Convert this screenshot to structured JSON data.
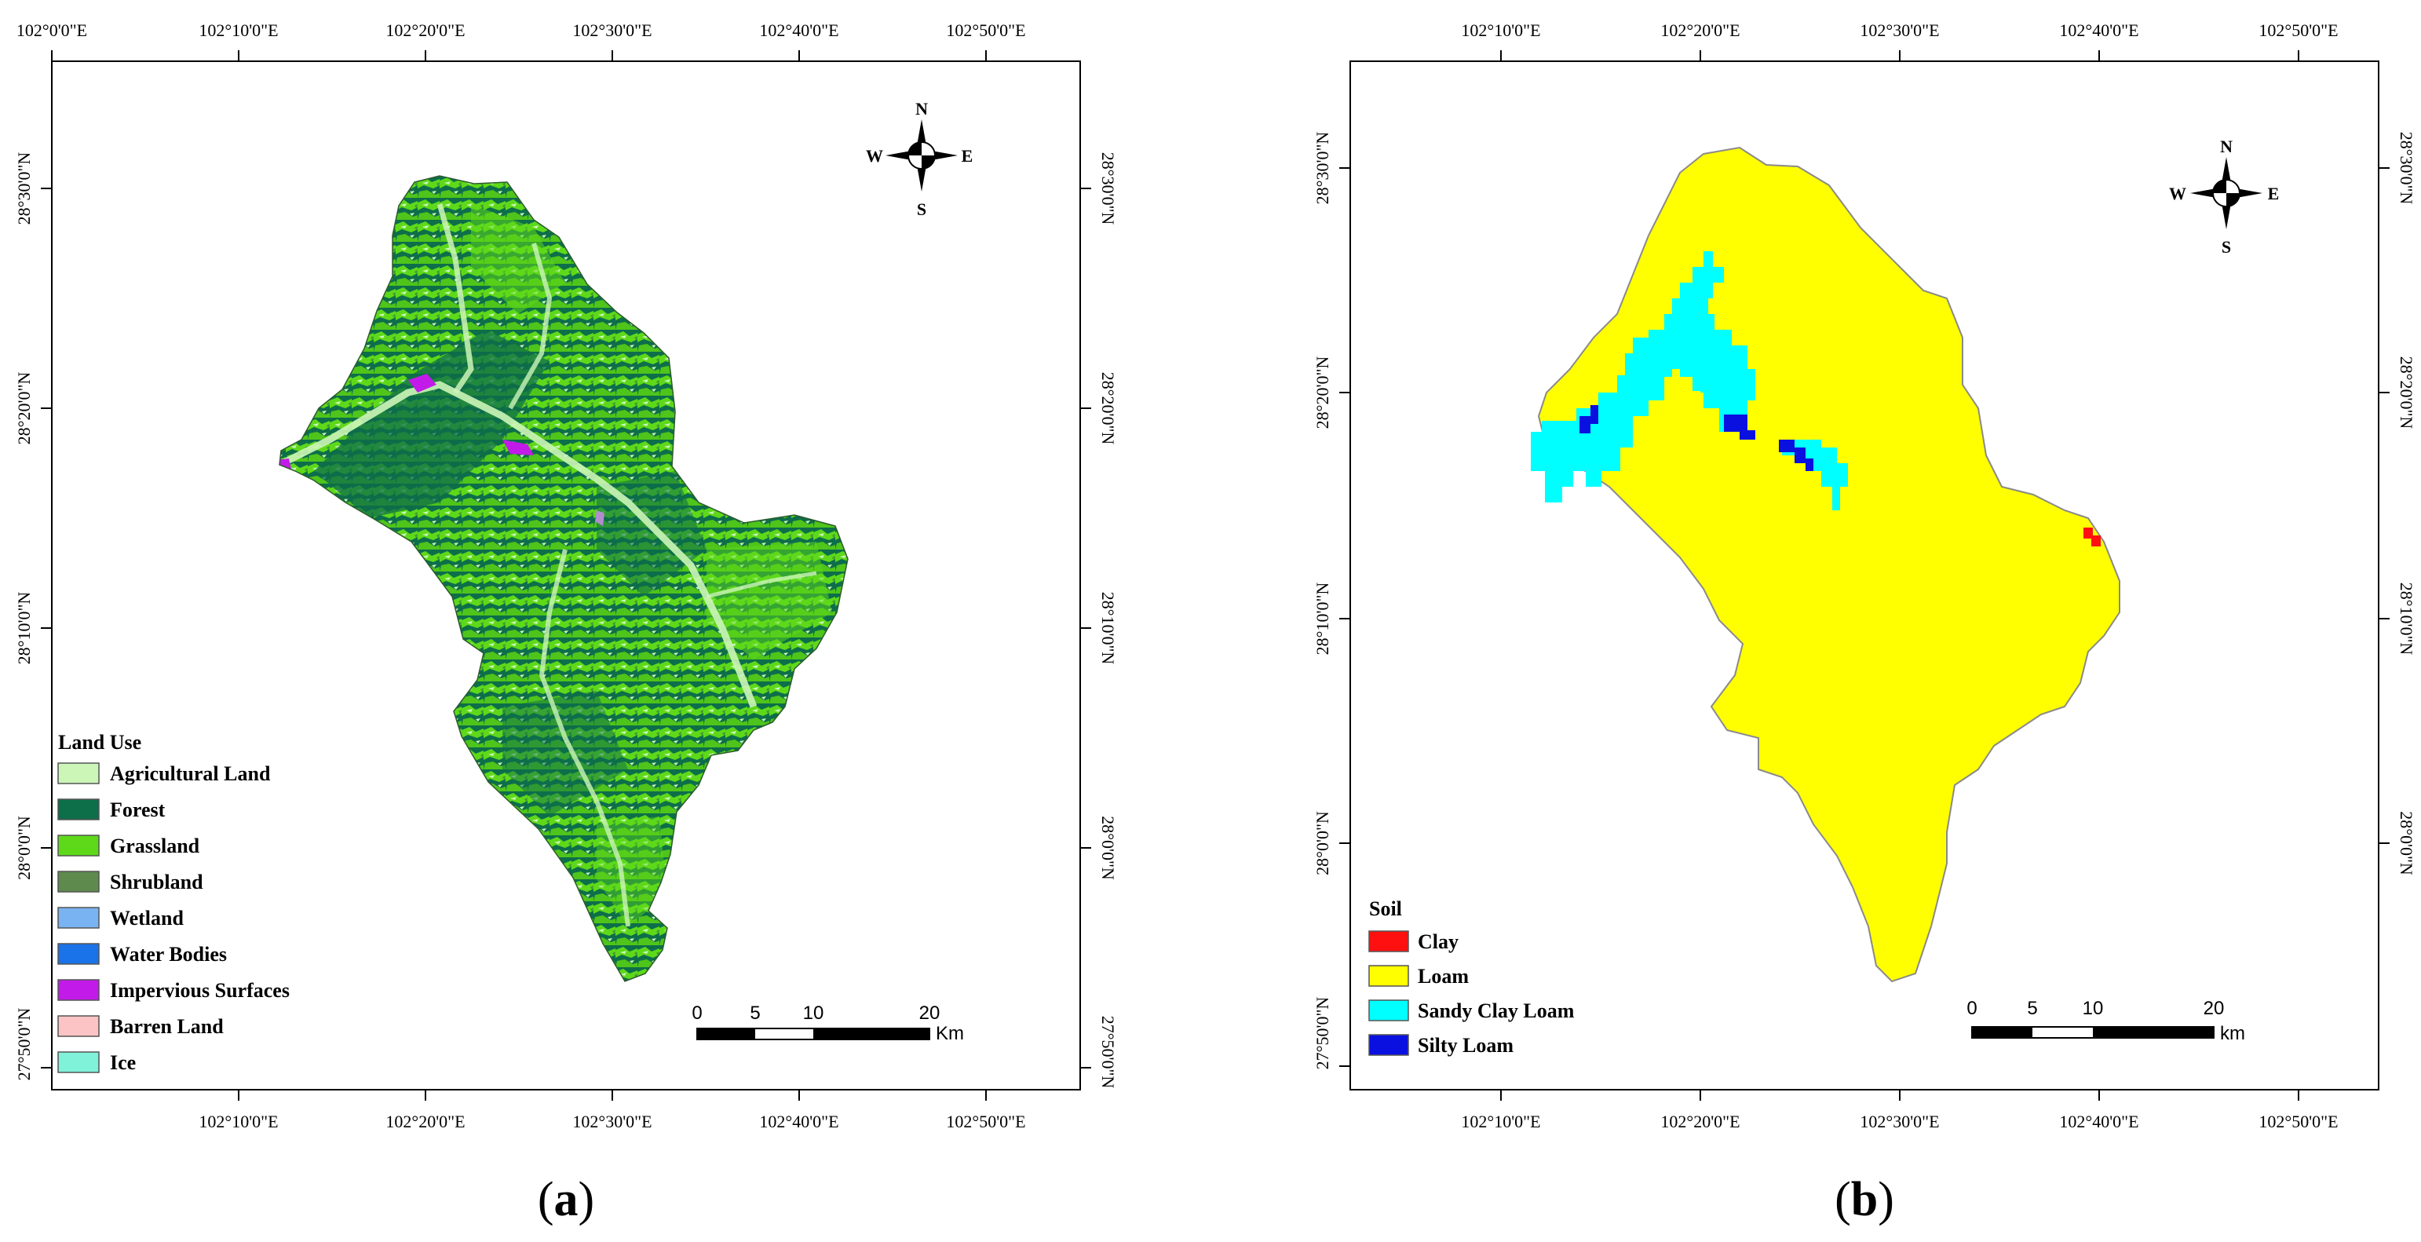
{
  "panels": [
    {
      "id": "a",
      "panel_label_open": "(",
      "panel_label_letter": "a",
      "panel_label_close": ")",
      "top_ticks": [
        "102°0'0\"E",
        "102°10'0\"E",
        "102°20'0\"E",
        "102°30'0\"E",
        "102°40'0\"E",
        "102°50'0\"E"
      ],
      "bottom_ticks": [
        "102°10'0\"E",
        "102°20'0\"E",
        "102°30'0\"E",
        "102°40'0\"E",
        "102°50'0\"E"
      ],
      "left_ticks": [
        "28°30'0\"N",
        "28°20'0\"N",
        "28°10'0\"N",
        "28°0'0\"N",
        "27°50'0\"N"
      ],
      "right_ticks": [
        "28°30'0\"N",
        "28°20'0\"N",
        "28°10'0\"N",
        "28°0'0\"N",
        "27°50'0\"N"
      ],
      "compass": {
        "n": "N",
        "s": "S",
        "e": "E",
        "w": "W"
      },
      "scale": {
        "labels": [
          "0",
          "5",
          "10",
          "20"
        ],
        "unit": "Km"
      },
      "legend_title": "Land Use",
      "legend": [
        {
          "label": "Agricultural Land",
          "color": "#ccf5b8"
        },
        {
          "label": "Forest",
          "color": "#0d6e4a"
        },
        {
          "label": "Grassland",
          "color": "#5ed91a"
        },
        {
          "label": "Shrubland",
          "color": "#5e8a4e"
        },
        {
          "label": "Wetland",
          "color": "#7ab3f2"
        },
        {
          "label": "Water Bodies",
          "color": "#1a73e8"
        },
        {
          "label": "Impervious Surfaces",
          "color": "#c21ae8"
        },
        {
          "label": "Barren Land",
          "color": "#fcc4c4"
        },
        {
          "label": "Ice",
          "color": "#7ff2d9"
        }
      ]
    },
    {
      "id": "b",
      "panel_label_open": "(",
      "panel_label_letter": "b",
      "panel_label_close": ")",
      "top_ticks": [
        "102°10'0\"E",
        "102°20'0\"E",
        "102°30'0\"E",
        "102°40'0\"E",
        "102°50'0\"E"
      ],
      "bottom_ticks": [
        "102°10'0\"E",
        "102°20'0\"E",
        "102°30'0\"E",
        "102°40'0\"E",
        "102°50'0\"E"
      ],
      "left_ticks": [
        "28°30'0\"N",
        "28°20'0\"N",
        "28°10'0\"N",
        "28°0'0\"N",
        "27°50'0\"N"
      ],
      "right_ticks": [
        "28°30'0\"N",
        "28°20'0\"N",
        "28°10'0\"N",
        "28°0'0\"N"
      ],
      "compass": {
        "n": "N",
        "s": "S",
        "e": "E",
        "w": "W"
      },
      "scale": {
        "labels": [
          "0",
          "5",
          "10",
          "20"
        ],
        "unit": "km"
      },
      "legend_title": "Soil",
      "legend": [
        {
          "label": "Clay",
          "color": "#ff1010"
        },
        {
          "label": "Loam",
          "color": "#ffff00"
        },
        {
          "label": "Sandy Clay Loam",
          "color": "#00ffff"
        },
        {
          "label": "Silty Loam",
          "color": "#0a10e0"
        }
      ]
    }
  ]
}
